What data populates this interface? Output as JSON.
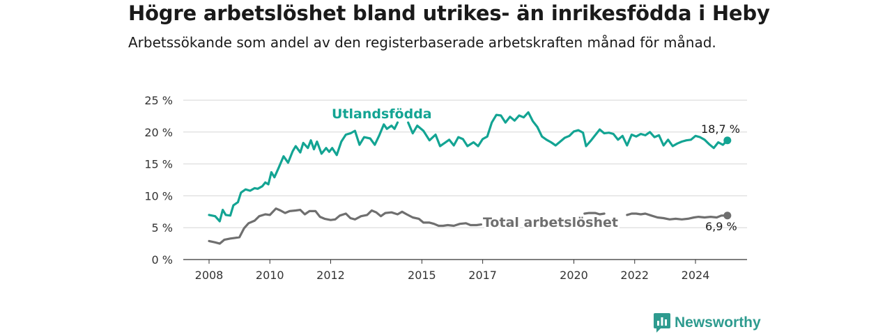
{
  "title": "Högre arbetslöshet bland utrikes- än inrikesfödda i Heby",
  "subtitle": "Arbetssökande som andel av den registerbaserade arbetskraften månad för månad.",
  "brand": {
    "name": "Newsworthy",
    "icon": "bar-chart-bubble-icon",
    "color": "#2e9b8f"
  },
  "chart_data": {
    "type": "line",
    "title": "Högre arbetslöshet bland utrikes- än inrikesfödda i Heby",
    "subtitle": "Arbetssökande som andel av den registerbaserade arbetskraften månad för månad.",
    "ylim": [
      0,
      25
    ],
    "xlim": [
      2007.75,
      2025.5
    ],
    "y_ticks": [
      0,
      5,
      10,
      15,
      20,
      25
    ],
    "y_tick_labels": [
      "0 %",
      "5 %",
      "10 %",
      "15 %",
      "20 %",
      "25 %"
    ],
    "x_ticks": [
      2008,
      2010,
      2012,
      2015,
      2017,
      2020,
      2022,
      2024
    ],
    "x_tick_labels": [
      "2008",
      "2010",
      "2012",
      "2015",
      "2017",
      "2020",
      "2022",
      "2024"
    ],
    "grid": "horizontal",
    "series": [
      {
        "name": "Utlandsfödda",
        "color": "#13a493",
        "end_label": "18,7 %",
        "points": [
          [
            2008.0,
            7.0
          ],
          [
            2008.2,
            6.8
          ],
          [
            2008.35,
            6.0
          ],
          [
            2008.45,
            7.8
          ],
          [
            2008.55,
            7.0
          ],
          [
            2008.7,
            6.9
          ],
          [
            2008.8,
            8.5
          ],
          [
            2008.95,
            9.0
          ],
          [
            2009.05,
            10.5
          ],
          [
            2009.2,
            11.0
          ],
          [
            2009.35,
            10.8
          ],
          [
            2009.5,
            11.2
          ],
          [
            2009.6,
            11.1
          ],
          [
            2009.75,
            11.5
          ],
          [
            2009.85,
            12.1
          ],
          [
            2009.95,
            11.8
          ],
          [
            2010.05,
            13.7
          ],
          [
            2010.15,
            12.9
          ],
          [
            2010.3,
            14.5
          ],
          [
            2010.45,
            16.2
          ],
          [
            2010.6,
            15.2
          ],
          [
            2010.75,
            17.0
          ],
          [
            2010.85,
            17.8
          ],
          [
            2011.0,
            16.8
          ],
          [
            2011.1,
            18.3
          ],
          [
            2011.25,
            17.5
          ],
          [
            2011.35,
            18.7
          ],
          [
            2011.45,
            17.3
          ],
          [
            2011.55,
            18.5
          ],
          [
            2011.7,
            16.6
          ],
          [
            2011.85,
            17.5
          ],
          [
            2011.95,
            16.9
          ],
          [
            2012.05,
            17.5
          ],
          [
            2012.2,
            16.4
          ],
          [
            2012.35,
            18.5
          ],
          [
            2012.5,
            19.6
          ],
          [
            2012.65,
            19.8
          ],
          [
            2012.8,
            20.2
          ],
          [
            2012.95,
            18.0
          ],
          [
            2013.1,
            19.2
          ],
          [
            2013.3,
            19.0
          ],
          [
            2013.45,
            18.0
          ],
          [
            2013.6,
            19.5
          ],
          [
            2013.75,
            21.2
          ],
          [
            2013.85,
            20.5
          ],
          [
            2014.0,
            21.0
          ],
          [
            2014.1,
            20.5
          ],
          [
            2014.2,
            21.5
          ]
        ],
        "points_2": [
          [
            2014.55,
            21.5
          ],
          [
            2014.7,
            19.8
          ],
          [
            2014.85,
            21.0
          ],
          [
            2015.05,
            20.2
          ],
          [
            2015.25,
            18.7
          ],
          [
            2015.45,
            19.6
          ],
          [
            2015.6,
            17.8
          ],
          [
            2015.75,
            18.3
          ],
          [
            2015.9,
            18.8
          ],
          [
            2016.05,
            17.9
          ],
          [
            2016.2,
            19.2
          ],
          [
            2016.35,
            18.9
          ],
          [
            2016.5,
            17.8
          ],
          [
            2016.7,
            18.4
          ],
          [
            2016.85,
            17.8
          ],
          [
            2017.0,
            18.9
          ],
          [
            2017.15,
            19.3
          ],
          [
            2017.3,
            21.5
          ],
          [
            2017.45,
            22.7
          ],
          [
            2017.6,
            22.6
          ],
          [
            2017.75,
            21.5
          ],
          [
            2017.9,
            22.4
          ],
          [
            2018.05,
            21.8
          ],
          [
            2018.2,
            22.6
          ],
          [
            2018.35,
            22.3
          ],
          [
            2018.5,
            23.1
          ],
          [
            2018.65,
            21.7
          ],
          [
            2018.8,
            20.8
          ],
          [
            2018.95,
            19.3
          ],
          [
            2019.1,
            18.8
          ],
          [
            2019.25,
            18.4
          ],
          [
            2019.4,
            17.9
          ],
          [
            2019.55,
            18.5
          ],
          [
            2019.7,
            19.1
          ],
          [
            2019.85,
            19.4
          ],
          [
            2020.0,
            20.1
          ],
          [
            2020.15,
            20.3
          ],
          [
            2020.3,
            19.9
          ],
          [
            2020.4,
            17.8
          ],
          [
            2020.55,
            18.6
          ],
          [
            2020.7,
            19.5
          ],
          [
            2020.85,
            20.4
          ],
          [
            2021.0,
            19.8
          ],
          [
            2021.15,
            19.9
          ],
          [
            2021.3,
            19.7
          ],
          [
            2021.45,
            18.8
          ],
          [
            2021.6,
            19.4
          ],
          [
            2021.75,
            17.9
          ],
          [
            2021.9,
            19.6
          ],
          [
            2022.05,
            19.3
          ],
          [
            2022.2,
            19.7
          ],
          [
            2022.35,
            19.5
          ],
          [
            2022.5,
            20.0
          ],
          [
            2022.65,
            19.2
          ],
          [
            2022.8,
            19.5
          ],
          [
            2022.95,
            17.9
          ],
          [
            2023.1,
            18.8
          ],
          [
            2023.25,
            17.8
          ],
          [
            2023.4,
            18.2
          ],
          [
            2023.55,
            18.5
          ],
          [
            2023.7,
            18.7
          ],
          [
            2023.85,
            18.8
          ],
          [
            2024.0,
            19.4
          ],
          [
            2024.15,
            19.2
          ],
          [
            2024.3,
            18.8
          ],
          [
            2024.45,
            18.1
          ],
          [
            2024.6,
            17.5
          ],
          [
            2024.75,
            18.4
          ],
          [
            2024.9,
            18.0
          ],
          [
            2025.05,
            18.7
          ]
        ]
      },
      {
        "name": "Total arbetslöshet",
        "color": "#6f6f6f",
        "end_label": "6,9 %",
        "points": [
          [
            2008.0,
            2.9
          ],
          [
            2008.2,
            2.7
          ],
          [
            2008.35,
            2.5
          ],
          [
            2008.5,
            3.1
          ],
          [
            2008.7,
            3.3
          ],
          [
            2008.85,
            3.4
          ],
          [
            2009.0,
            3.5
          ],
          [
            2009.15,
            4.9
          ],
          [
            2009.3,
            5.7
          ],
          [
            2009.5,
            6.1
          ],
          [
            2009.65,
            6.8
          ],
          [
            2009.85,
            7.1
          ],
          [
            2010.0,
            7.0
          ],
          [
            2010.2,
            8.0
          ],
          [
            2010.35,
            7.7
          ],
          [
            2010.5,
            7.3
          ],
          [
            2010.65,
            7.6
          ],
          [
            2010.85,
            7.7
          ],
          [
            2011.0,
            7.8
          ],
          [
            2011.15,
            7.1
          ],
          [
            2011.3,
            7.6
          ],
          [
            2011.5,
            7.6
          ],
          [
            2011.65,
            6.7
          ],
          [
            2011.8,
            6.4
          ],
          [
            2012.0,
            6.2
          ],
          [
            2012.15,
            6.3
          ],
          [
            2012.3,
            6.9
          ],
          [
            2012.5,
            7.2
          ],
          [
            2012.65,
            6.5
          ],
          [
            2012.8,
            6.3
          ],
          [
            2013.0,
            6.8
          ],
          [
            2013.2,
            7.0
          ],
          [
            2013.35,
            7.7
          ],
          [
            2013.5,
            7.4
          ],
          [
            2013.65,
            6.8
          ],
          [
            2013.8,
            7.3
          ],
          [
            2014.0,
            7.4
          ],
          [
            2014.2,
            7.1
          ],
          [
            2014.35,
            7.5
          ],
          [
            2014.5,
            7.1
          ],
          [
            2014.7,
            6.6
          ],
          [
            2014.9,
            6.4
          ],
          [
            2015.05,
            5.8
          ],
          [
            2015.25,
            5.8
          ],
          [
            2015.4,
            5.6
          ],
          [
            2015.55,
            5.3
          ],
          [
            2015.7,
            5.3
          ],
          [
            2015.85,
            5.4
          ],
          [
            2016.05,
            5.3
          ],
          [
            2016.25,
            5.6
          ],
          [
            2016.45,
            5.7
          ],
          [
            2016.6,
            5.4
          ],
          [
            2016.8,
            5.4
          ],
          [
            2016.95,
            5.5
          ]
        ],
        "points_2": [
          [
            2020.35,
            7.2
          ],
          [
            2020.5,
            7.3
          ],
          [
            2020.7,
            7.3
          ],
          [
            2020.85,
            7.1
          ],
          [
            2021.0,
            7.2
          ]
        ],
        "points_3": [
          [
            2021.75,
            7.0
          ],
          [
            2021.9,
            7.2
          ],
          [
            2022.05,
            7.2
          ],
          [
            2022.2,
            7.1
          ],
          [
            2022.35,
            7.2
          ],
          [
            2022.55,
            6.9
          ],
          [
            2022.75,
            6.6
          ],
          [
            2022.95,
            6.5
          ],
          [
            2023.15,
            6.3
          ],
          [
            2023.35,
            6.4
          ],
          [
            2023.55,
            6.3
          ],
          [
            2023.75,
            6.4
          ],
          [
            2023.95,
            6.6
          ],
          [
            2024.1,
            6.7
          ],
          [
            2024.3,
            6.6
          ],
          [
            2024.5,
            6.7
          ],
          [
            2024.7,
            6.6
          ],
          [
            2024.85,
            6.9
          ],
          [
            2025.05,
            6.9
          ]
        ]
      }
    ]
  }
}
